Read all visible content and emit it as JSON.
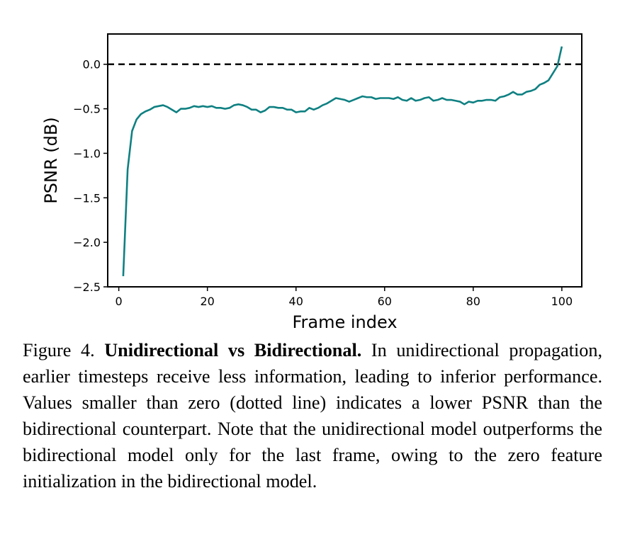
{
  "chart_data": {
    "type": "line",
    "title": "",
    "xlabel": "Frame index",
    "ylabel": "PSNR (dB)",
    "xlim": [
      -2.5,
      104.5
    ],
    "ylim": [
      -2.5,
      0.34
    ],
    "xticks": [
      0,
      20,
      40,
      60,
      80,
      100
    ],
    "xtick_labels": [
      "0",
      "20",
      "40",
      "60",
      "80",
      "100"
    ],
    "yticks": [
      0.0,
      -0.5,
      -1.0,
      -1.5,
      -2.0,
      -2.5
    ],
    "ytick_labels": [
      "0.0",
      "−0.5",
      "−1.0",
      "−1.5",
      "−2.0",
      "−2.5"
    ],
    "grid": false,
    "reference_line": {
      "y": 0.0,
      "style": "dashed",
      "color": "#000000"
    },
    "series": [
      {
        "color": "#0f8082",
        "x": [
          1,
          2,
          3,
          4,
          5,
          6,
          7,
          8,
          9,
          10,
          11,
          12,
          13,
          14,
          15,
          16,
          17,
          18,
          19,
          20,
          21,
          22,
          23,
          24,
          25,
          26,
          27,
          28,
          29,
          30,
          31,
          32,
          33,
          34,
          35,
          36,
          37,
          38,
          39,
          40,
          41,
          42,
          43,
          44,
          45,
          46,
          47,
          48,
          49,
          50,
          51,
          52,
          53,
          54,
          55,
          56,
          57,
          58,
          59,
          60,
          61,
          62,
          63,
          64,
          65,
          66,
          67,
          68,
          69,
          70,
          71,
          72,
          73,
          74,
          75,
          76,
          77,
          78,
          79,
          80,
          81,
          82,
          83,
          84,
          85,
          86,
          87,
          88,
          89,
          90,
          91,
          92,
          93,
          94,
          95,
          96,
          97,
          98,
          99,
          100
        ],
        "y": [
          -2.38,
          -1.18,
          -0.75,
          -0.62,
          -0.56,
          -0.53,
          -0.51,
          -0.48,
          -0.47,
          -0.46,
          -0.48,
          -0.51,
          -0.54,
          -0.5,
          -0.5,
          -0.49,
          -0.47,
          -0.48,
          -0.47,
          -0.48,
          -0.47,
          -0.49,
          -0.49,
          -0.5,
          -0.49,
          -0.46,
          -0.45,
          -0.46,
          -0.48,
          -0.51,
          -0.51,
          -0.54,
          -0.52,
          -0.48,
          -0.48,
          -0.49,
          -0.49,
          -0.51,
          -0.51,
          -0.54,
          -0.53,
          -0.53,
          -0.49,
          -0.51,
          -0.49,
          -0.46,
          -0.44,
          -0.41,
          -0.38,
          -0.39,
          -0.4,
          -0.42,
          -0.4,
          -0.38,
          -0.36,
          -0.37,
          -0.37,
          -0.39,
          -0.38,
          -0.38,
          -0.38,
          -0.39,
          -0.37,
          -0.4,
          -0.41,
          -0.38,
          -0.41,
          -0.4,
          -0.38,
          -0.37,
          -0.41,
          -0.4,
          -0.38,
          -0.4,
          -0.4,
          -0.41,
          -0.42,
          -0.45,
          -0.42,
          -0.43,
          -0.41,
          -0.41,
          -0.4,
          -0.4,
          -0.41,
          -0.37,
          -0.36,
          -0.34,
          -0.31,
          -0.34,
          -0.34,
          -0.31,
          -0.3,
          -0.28,
          -0.23,
          -0.21,
          -0.18,
          -0.1,
          -0.02,
          0.2
        ]
      }
    ]
  },
  "caption": {
    "label": "Figure 4.",
    "title": "Unidirectional vs Bidirectional.",
    "body": "In unidirectional propagation, earlier timesteps receive less information, leading to inferior performance. Values smaller than zero (dotted line) indicates a lower PSNR than the bidirectional counterpart. Note that the unidirectional model outperforms the bidirectional model only for the last frame, owing to the zero feature initialization in the bidirectional model."
  }
}
